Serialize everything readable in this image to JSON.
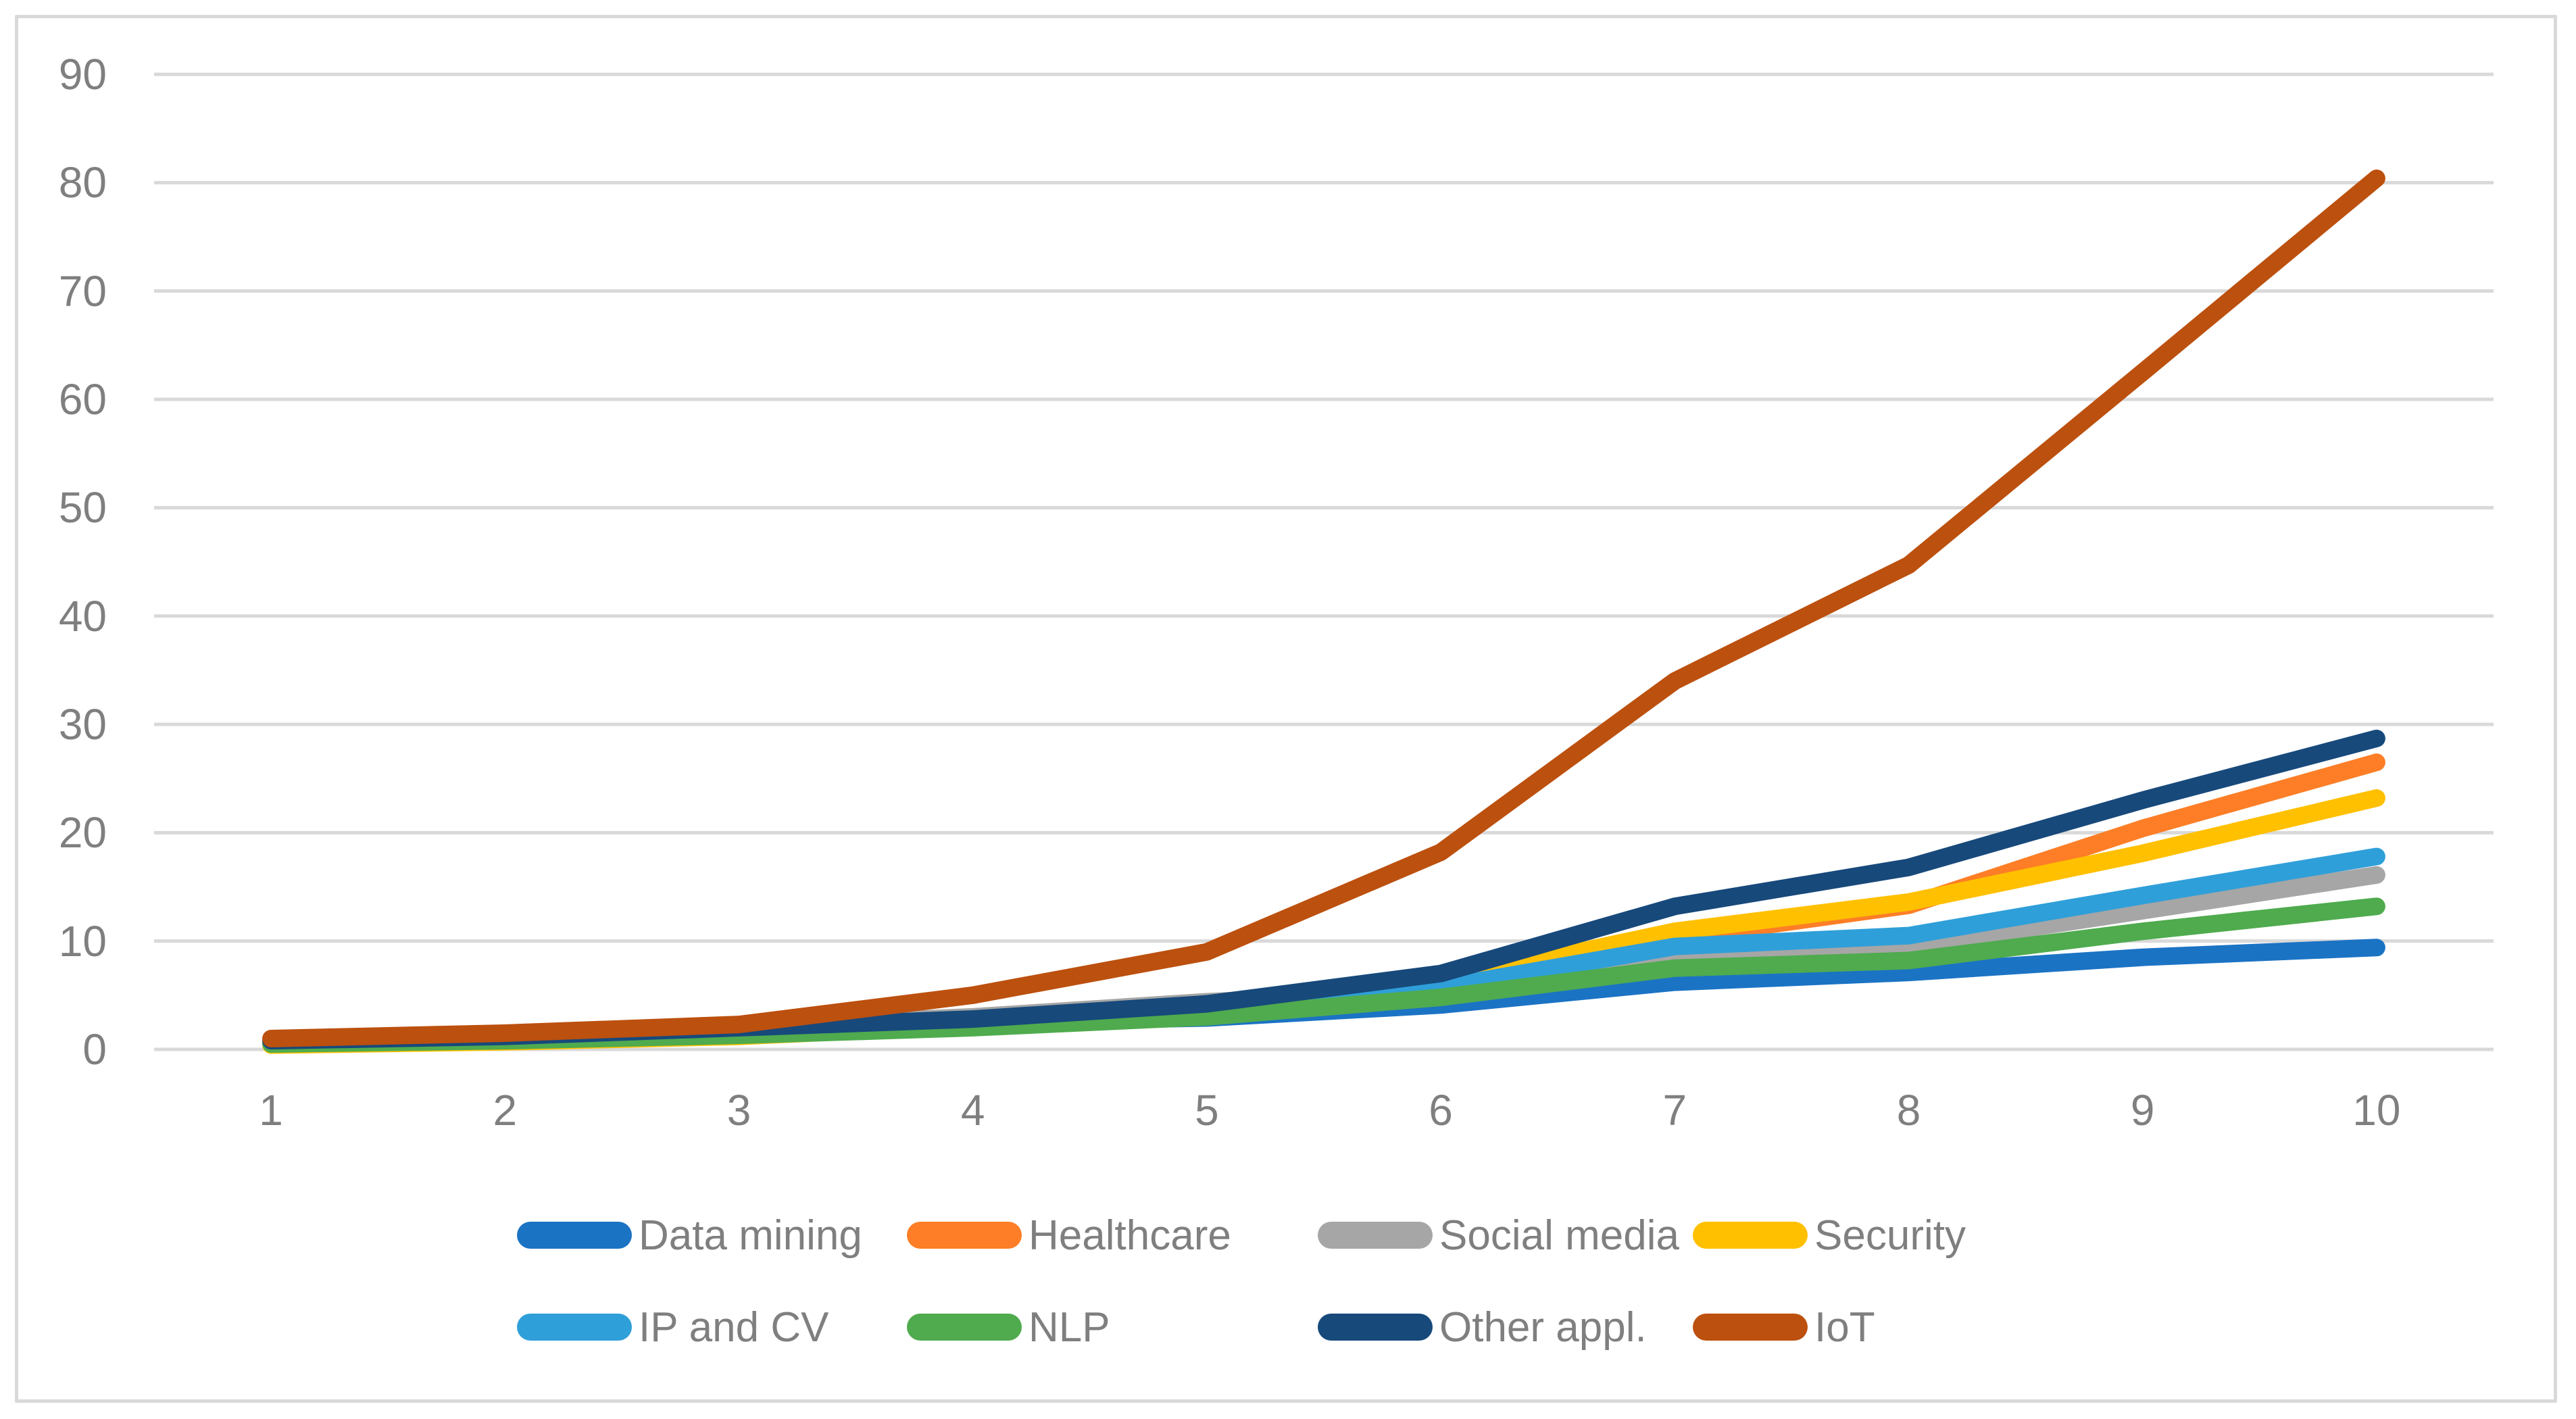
{
  "chart_data": {
    "type": "line",
    "title": "",
    "xlabel": "",
    "ylabel": "",
    "x": [
      1,
      2,
      3,
      4,
      5,
      6,
      7,
      8,
      9,
      10
    ],
    "x_tick_labels": [
      "1",
      "2",
      "3",
      "4",
      "5",
      "6",
      "7",
      "8",
      "9",
      "10"
    ],
    "y_tick_labels": [
      "0",
      "10",
      "20",
      "30",
      "40",
      "50",
      "60",
      "70",
      "80",
      "90"
    ],
    "ylim": [
      0,
      90
    ],
    "y_step": 10,
    "grid": true,
    "legend_position": "bottom",
    "series": [
      {
        "name": "Data mining",
        "color": "#1B73C4",
        "values": [
          0.7,
          1.1,
          1.7,
          2.5,
          2.9,
          4.1,
          6.2,
          7.1,
          8.5,
          9.4
        ]
      },
      {
        "name": "Healthcare",
        "color": "#FD7E26",
        "values": [
          0.7,
          1.0,
          1.6,
          2.6,
          4.0,
          6.0,
          10.3,
          13.3,
          20.4,
          26.5
        ]
      },
      {
        "name": "Social media",
        "color": "#A6A6A6",
        "values": [
          0.9,
          1.3,
          2.1,
          3.0,
          4.4,
          5.3,
          8.4,
          9.5,
          12.8,
          16.1
        ]
      },
      {
        "name": "Security",
        "color": "#FFC000",
        "values": [
          0.4,
          0.7,
          1.2,
          2.2,
          3.4,
          6.3,
          10.9,
          13.6,
          18.1,
          23.2
        ]
      },
      {
        "name": "IP and CV",
        "color": "#2F9FD9",
        "values": [
          0.6,
          0.9,
          1.5,
          2.4,
          3.7,
          5.7,
          9.5,
          10.5,
          14.2,
          17.8
        ]
      },
      {
        "name": "NLP",
        "color": "#4FAB4E",
        "values": [
          0.5,
          0.8,
          1.3,
          2.0,
          3.0,
          4.8,
          7.5,
          8.2,
          10.9,
          13.2
        ]
      },
      {
        "name": "Other appl.",
        "color": "#17497B",
        "values": [
          0.8,
          1.2,
          2.0,
          2.8,
          4.2,
          7.0,
          13.2,
          16.8,
          23.0,
          28.7
        ]
      },
      {
        "name": "IoT",
        "color": "#BC500E",
        "values": [
          1.0,
          1.5,
          2.3,
          5.0,
          9.0,
          18.2,
          34.0,
          44.7,
          62.5,
          80.4
        ]
      }
    ],
    "legend_rows": [
      [
        "Data mining",
        "Healthcare",
        "Social media",
        "Security"
      ],
      [
        "IP and CV",
        "NLP",
        "Other appl.",
        "IoT"
      ]
    ]
  },
  "colors": {
    "background": "#FFFFFF",
    "gridline": "#D9D9D9",
    "chart_border": "#D9D9D9",
    "axis_text": "#7F7F7F",
    "legend_text": "#7F7F7F"
  }
}
